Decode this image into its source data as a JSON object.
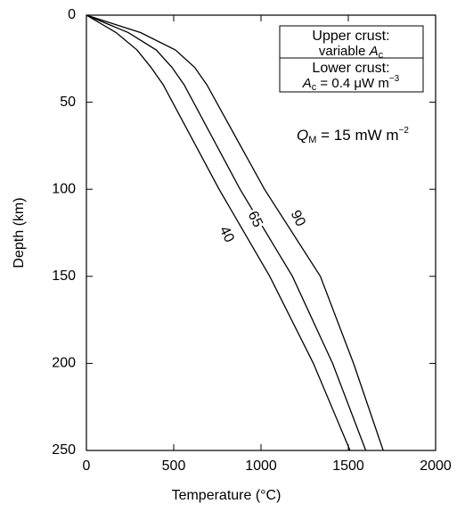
{
  "chart_data": {
    "type": "line",
    "xlabel": "Temperature (°C)",
    "ylabel": "Depth (km)",
    "xlim": [
      0,
      2000
    ],
    "xticks": [
      0,
      500,
      1000,
      1500,
      2000
    ],
    "ylim": [
      0,
      250
    ],
    "yticks": [
      0,
      50,
      100,
      150,
      200,
      250
    ],
    "y_inverted": true,
    "color": "#000000",
    "series": [
      {
        "name": "40",
        "x": [
          0,
          170,
          290,
          370,
          440,
          760,
          1050,
          1300,
          1510
        ],
        "values": [
          0,
          10,
          20,
          30,
          40,
          100,
          150,
          200,
          250
        ]
      },
      {
        "name": "65",
        "x": [
          0,
          240,
          400,
          490,
          560,
          880,
          1180,
          1410,
          1600
        ],
        "values": [
          0,
          10,
          20,
          30,
          40,
          100,
          150,
          200,
          250
        ]
      },
      {
        "name": "90",
        "x": [
          0,
          310,
          510,
          620,
          690,
          1020,
          1340,
          1530,
          1700
        ],
        "values": [
          0,
          10,
          20,
          30,
          40,
          100,
          150,
          200,
          250
        ]
      }
    ],
    "legend_box": {
      "upper_title": "Upper crust:",
      "upper_text": [
        "variable ",
        "A",
        "c"
      ],
      "lower_title": "Lower crust:",
      "lower_text": [
        "A",
        "c",
        " = 0.4 μW m",
        "−3"
      ]
    },
    "annotation": [
      "Q",
      "M",
      " = 15 mW m",
      "−2"
    ]
  }
}
